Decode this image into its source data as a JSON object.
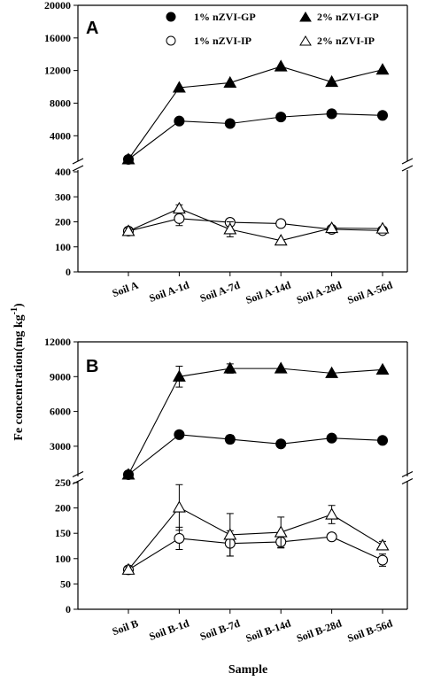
{
  "y_axis_title": "Fe concentration(mg kg",
  "y_axis_title_exp": "-1",
  "y_axis_title_close": ")",
  "x_axis_title": "Sample",
  "legend": [
    {
      "label": "1% nZVI-GP",
      "marker": "circle",
      "fill": "#000000"
    },
    {
      "label": "2% nZVI-GP",
      "marker": "triangle",
      "fill": "#000000"
    },
    {
      "label": "1% nZVI-IP",
      "marker": "circle",
      "fill": "#ffffff"
    },
    {
      "label": "2% nZVI-IP",
      "marker": "triangle",
      "fill": "#ffffff"
    }
  ],
  "chart_data": [
    {
      "panel": "A",
      "type": "line",
      "categories": [
        "Soil A",
        "Soil A-1d",
        "Soil A-7d",
        "Soil A-14d",
        "Soil A-28d",
        "Soil A-56d"
      ],
      "upper_axis": {
        "ticks": [
          "4000",
          "8000",
          "12000",
          "16000",
          "20000"
        ],
        "ylim": [
          1100,
          20000
        ]
      },
      "lower_axis": {
        "ticks": [
          "0",
          "100",
          "200",
          "300",
          "400"
        ],
        "ylim": [
          0,
          400
        ]
      },
      "series": [
        {
          "name": "1% nZVI-GP",
          "axis": "upper",
          "values": [
            1100,
            5800,
            5500,
            6300,
            6700,
            6500
          ],
          "errors": [
            0,
            0,
            0,
            0,
            0,
            0
          ]
        },
        {
          "name": "2% nZVI-GP",
          "axis": "upper",
          "values": [
            1100,
            9900,
            10500,
            12500,
            10600,
            12100
          ],
          "errors": [
            0,
            0,
            0,
            0,
            0,
            0
          ]
        },
        {
          "name": "1% nZVI-IP",
          "axis": "lower",
          "values": [
            163,
            213,
            198,
            193,
            170,
            165
          ],
          "errors": [
            15,
            28,
            10,
            0,
            0,
            0
          ]
        },
        {
          "name": "2% nZVI-IP",
          "axis": "lower",
          "values": [
            163,
            253,
            170,
            125,
            175,
            173
          ],
          "errors": [
            12,
            15,
            30,
            0,
            5,
            5
          ]
        }
      ]
    },
    {
      "panel": "B",
      "type": "line",
      "categories": [
        "Soil B",
        "Soil B-1d",
        "Soil B-7d",
        "Soil B-14d",
        "Soil B-28d",
        "Soil B-56d"
      ],
      "upper_axis": {
        "ticks": [
          "3000",
          "6000",
          "9000",
          "12000"
        ],
        "ylim": [
          550,
          12000
        ]
      },
      "lower_axis": {
        "ticks": [
          "0",
          "50",
          "100",
          "150",
          "200",
          "250"
        ],
        "ylim": [
          0,
          250
        ]
      },
      "series": [
        {
          "name": "1% nZVI-GP",
          "axis": "upper",
          "values": [
            550,
            4000,
            3600,
            3200,
            3700,
            3500
          ],
          "errors": [
            0,
            0,
            350,
            0,
            0,
            0
          ]
        },
        {
          "name": "2% nZVI-GP",
          "axis": "upper",
          "values": [
            550,
            9000,
            9700,
            9700,
            9300,
            9600
          ],
          "errors": [
            0,
            900,
            400,
            0,
            0,
            0
          ]
        },
        {
          "name": "1% nZVI-IP",
          "axis": "lower",
          "values": [
            78,
            140,
            130,
            133,
            143,
            97
          ],
          "errors": [
            6,
            22,
            25,
            12,
            0,
            12
          ]
        },
        {
          "name": "2% nZVI-IP",
          "axis": "lower",
          "values": [
            78,
            201,
            147,
            152,
            187,
            126
          ],
          "errors": [
            6,
            45,
            42,
            30,
            18,
            8
          ]
        }
      ]
    }
  ]
}
